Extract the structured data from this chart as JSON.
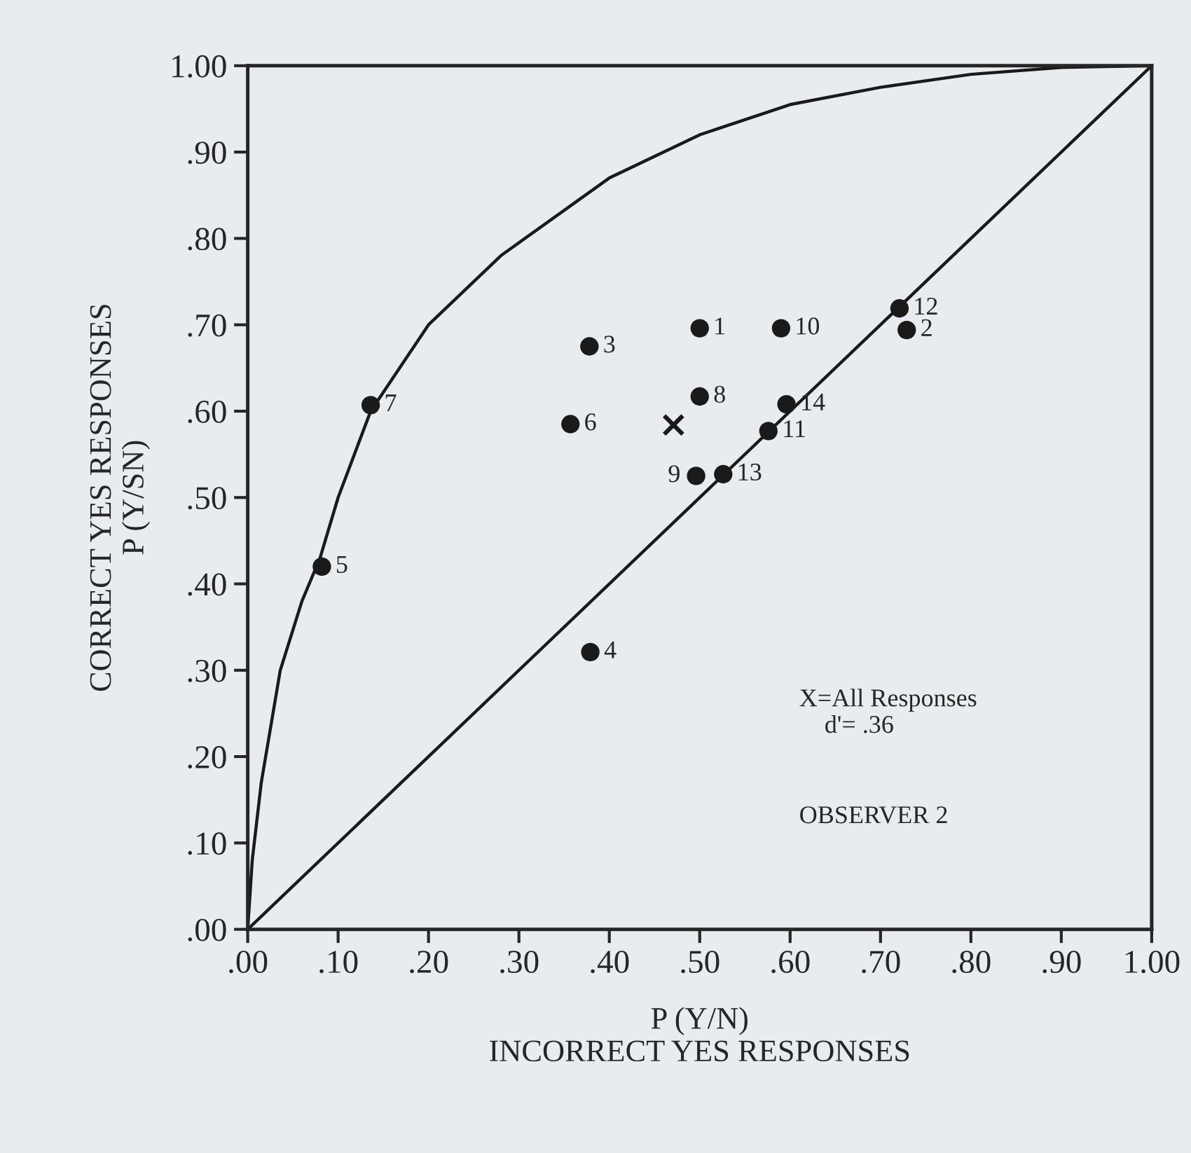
{
  "chart_data": {
    "type": "scatter",
    "xlabel": "P (Y/N)\nINCORRECT YES RESPONSES",
    "ylabel": "CORRECT YES RESPONSES\nP (Y/SN)",
    "xlim": [
      0,
      1
    ],
    "ylim": [
      0,
      1
    ],
    "xticks": [
      {
        "value": 0,
        "label": ".00"
      },
      {
        "value": 0.1,
        "label": ".10"
      },
      {
        "value": 0.2,
        "label": ".20"
      },
      {
        "value": 0.3,
        "label": ".30"
      },
      {
        "value": 0.4,
        "label": ".40"
      },
      {
        "value": 0.5,
        "label": ".50"
      },
      {
        "value": 0.6,
        "label": ".60"
      },
      {
        "value": 0.7,
        "label": ".70"
      },
      {
        "value": 0.8,
        "label": ".80"
      },
      {
        "value": 0.9,
        "label": ".90"
      },
      {
        "value": 1,
        "label": "1.00"
      }
    ],
    "yticks": [
      {
        "value": 0,
        "label": ".00"
      },
      {
        "value": 0.1,
        "label": ".10"
      },
      {
        "value": 0.2,
        "label": ".20"
      },
      {
        "value": 0.3,
        "label": ".30"
      },
      {
        "value": 0.4,
        "label": ".40"
      },
      {
        "value": 0.5,
        "label": ".50"
      },
      {
        "value": 0.6,
        "label": ".60"
      },
      {
        "value": 0.7,
        "label": ".70"
      },
      {
        "value": 0.8,
        "label": ".80"
      },
      {
        "value": 0.9,
        "label": ".90"
      },
      {
        "value": 1,
        "label": "1.00"
      }
    ],
    "grid": false,
    "legend": false,
    "series": [
      {
        "type": "line",
        "color": "#1a1a1a",
        "marker": "none",
        "line_style": "solid",
        "x": [
          0,
          1
        ],
        "values": [
          0,
          1
        ]
      },
      {
        "type": "line",
        "color": "#1a1a1a",
        "marker": "none",
        "line_style": "solid",
        "x": [
          0,
          0.005,
          0.015,
          0.036,
          0.06,
          0.08,
          0.1,
          0.136,
          0.2,
          0.28,
          0.4,
          0.5,
          0.6,
          0.7,
          0.8,
          0.9,
          1
        ],
        "values": [
          0,
          0.08,
          0.17,
          0.3,
          0.38,
          0.43,
          0.5,
          0.6,
          0.7,
          0.78,
          0.87,
          0.92,
          0.955,
          0.975,
          0.99,
          0.998,
          1
        ]
      },
      {
        "color": "#1a1a1a",
        "marker": "circle",
        "x": [
          0.5,
          0.729,
          0.378,
          0.379,
          0.082,
          0.357,
          0.136,
          0.5,
          0.496,
          0.59,
          0.576,
          0.721,
          0.526,
          0.596
        ],
        "values": [
          0.696,
          0.694,
          0.675,
          0.321,
          0.42,
          0.585,
          0.607,
          0.617,
          0.525,
          0.696,
          0.577,
          0.719,
          0.527,
          0.608
        ]
      },
      {
        "color": "#1a1a1a",
        "marker": "cross",
        "x": [
          0.471
        ],
        "values": [
          0.584
        ]
      }
    ],
    "annotations": [
      {
        "text": "1",
        "x": 0.5,
        "y": 0.696
      },
      {
        "text": "2",
        "x": 0.729,
        "y": 0.694
      },
      {
        "text": "3",
        "x": 0.378,
        "y": 0.675
      },
      {
        "text": "4",
        "x": 0.379,
        "y": 0.321
      },
      {
        "text": "5",
        "x": 0.082,
        "y": 0.42
      },
      {
        "text": "6",
        "x": 0.357,
        "y": 0.585
      },
      {
        "text": "7",
        "x": 0.136,
        "y": 0.607
      },
      {
        "text": "8",
        "x": 0.5,
        "y": 0.617
      },
      {
        "text": "9",
        "x": 0.496,
        "y": 0.525
      },
      {
        "text": "10",
        "x": 0.59,
        "y": 0.696
      },
      {
        "text": "11",
        "x": 0.576,
        "y": 0.577
      },
      {
        "text": "12",
        "x": 0.721,
        "y": 0.719
      },
      {
        "text": "13",
        "x": 0.526,
        "y": 0.527
      },
      {
        "text": "14",
        "x": 0.596,
        "y": 0.608
      },
      "X=All Responses\n    d'= .36",
      "OBSERVER 2"
    ]
  }
}
